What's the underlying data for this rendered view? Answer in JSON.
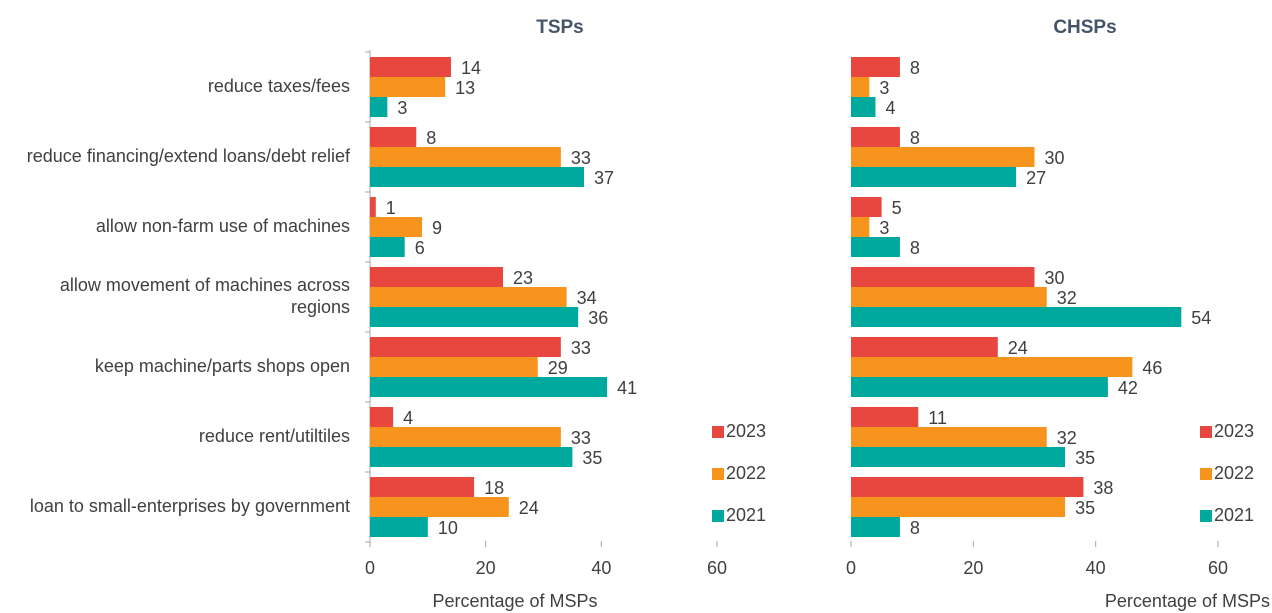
{
  "chart_data": [
    {
      "type": "bar",
      "orientation": "horizontal",
      "title": "TSPs",
      "xlabel": "Percentage of MSPs",
      "categories": [
        "reduce taxes/fees",
        "reduce financing/extend loans/debt relief",
        "allow non-farm use of machines",
        "allow movement of machines across regions",
        "keep machine/parts shops open",
        "reduce rent/utiltiles",
        "loan to small-enterprises by government"
      ],
      "series": [
        {
          "name": "2023",
          "color": "#e8473f",
          "values": [
            14,
            8,
            1,
            23,
            33,
            4,
            18
          ]
        },
        {
          "name": "2022",
          "color": "#f7941d",
          "values": [
            13,
            33,
            9,
            34,
            29,
            33,
            24
          ]
        },
        {
          "name": "2021",
          "color": "#00a99d",
          "values": [
            3,
            37,
            6,
            36,
            41,
            35,
            10
          ]
        }
      ],
      "xlim": [
        0,
        60
      ],
      "xticks": [
        0,
        20,
        40,
        60
      ],
      "legend": "right"
    },
    {
      "type": "bar",
      "orientation": "horizontal",
      "title": "CHSPs",
      "xlabel": "Percentage of MSPs",
      "series": [
        {
          "name": "2023",
          "color": "#e8473f",
          "values": [
            8,
            8,
            5,
            30,
            24,
            11,
            38
          ]
        },
        {
          "name": "2022",
          "color": "#f7941d",
          "values": [
            3,
            30,
            3,
            32,
            46,
            32,
            35
          ]
        },
        {
          "name": "2021",
          "color": "#00a99d",
          "values": [
            4,
            27,
            8,
            54,
            42,
            35,
            8
          ]
        }
      ],
      "xlim": [
        0,
        60
      ],
      "xticks": [
        0,
        20,
        40,
        60
      ],
      "legend": "right"
    }
  ]
}
